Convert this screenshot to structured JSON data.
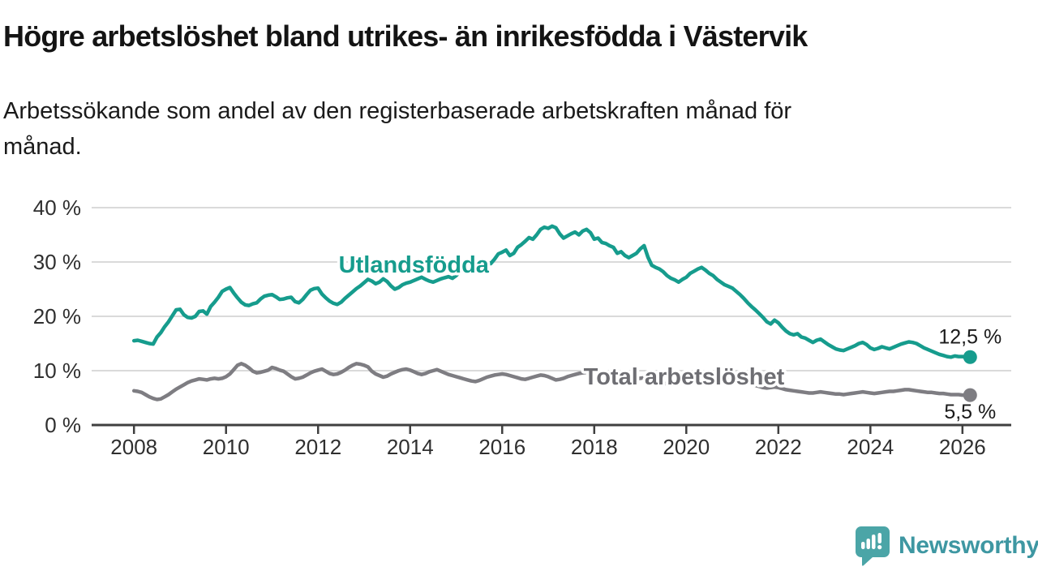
{
  "header": {
    "title": "Högre arbetslöshet bland utrikes- än inrikesfödda i Västervik",
    "subtitle": "Arbetssökande som andel av den registerbaserade arbetskraften månad för månad."
  },
  "chart_data": {
    "type": "line",
    "xlim": [
      2007.08,
      2027.06
    ],
    "ylim": [
      0,
      40
    ],
    "grid": "horizontal",
    "x_start": 2008.0,
    "x_step": 0.0833333,
    "x_ticks": [
      {
        "value": 2008,
        "label": "2008"
      },
      {
        "value": 2010,
        "label": "2010"
      },
      {
        "value": 2012,
        "label": "2012"
      },
      {
        "value": 2014,
        "label": "2014"
      },
      {
        "value": 2016,
        "label": "2016"
      },
      {
        "value": 2018,
        "label": "2018"
      },
      {
        "value": 2020,
        "label": "2020"
      },
      {
        "value": 2022,
        "label": "2022"
      },
      {
        "value": 2024,
        "label": "2024"
      },
      {
        "value": 2026,
        "label": "2026"
      }
    ],
    "y_ticks": [
      {
        "value": 0,
        "label": "0 %"
      },
      {
        "value": 10,
        "label": "10 %"
      },
      {
        "value": 20,
        "label": "20 %"
      },
      {
        "value": 30,
        "label": "30 %"
      },
      {
        "value": 40,
        "label": "40 %"
      }
    ],
    "series": [
      {
        "id": "utlandsfodda",
        "name": "Utlandsfödda",
        "color": "#169c8d",
        "label_color": "#169c8d",
        "label_x_year": 2014.08,
        "label_y_pct": 29.55,
        "end_label": "12,5 %",
        "values": [
          15.5,
          15.6,
          15.4,
          15.2,
          15.0,
          14.9,
          16.2,
          17.0,
          18.1,
          19.0,
          20.1,
          21.2,
          21.3,
          20.3,
          19.8,
          19.7,
          20.0,
          20.9,
          21.0,
          20.4,
          21.8,
          22.6,
          23.5,
          24.6,
          25.0,
          25.3,
          24.3,
          23.4,
          22.6,
          22.1,
          22.0,
          22.3,
          22.5,
          23.2,
          23.7,
          23.9,
          24.0,
          23.6,
          23.1,
          23.2,
          23.4,
          23.5,
          22.7,
          22.5,
          23.1,
          24.0,
          24.8,
          25.1,
          25.2,
          24.1,
          23.4,
          22.8,
          22.4,
          22.2,
          22.6,
          23.3,
          23.9,
          24.5,
          25.1,
          25.6,
          26.2,
          26.8,
          26.5,
          26.0,
          26.3,
          26.9,
          26.4,
          25.6,
          25.0,
          25.3,
          25.8,
          26.1,
          26.3,
          26.6,
          26.9,
          27.2,
          26.8,
          26.5,
          26.3,
          26.6,
          26.9,
          27.1,
          27.3,
          27.0,
          27.5,
          28.2,
          29.4,
          28.7,
          29.0,
          30.0,
          30.2,
          30.4,
          30.0,
          29.7,
          30.5,
          31.5,
          31.8,
          32.2,
          31.2,
          31.6,
          32.7,
          33.2,
          33.8,
          34.5,
          34.2,
          35.0,
          36.0,
          36.4,
          36.2,
          36.6,
          36.3,
          35.2,
          34.4,
          34.8,
          35.2,
          35.5,
          35.0,
          35.7,
          36.0,
          35.4,
          34.2,
          34.4,
          33.6,
          33.4,
          33.0,
          32.7,
          31.6,
          31.9,
          31.2,
          30.8,
          31.2,
          31.6,
          32.4,
          33.0,
          30.9,
          29.4,
          29.0,
          28.7,
          28.2,
          27.5,
          27.0,
          26.7,
          26.3,
          26.8,
          27.2,
          27.9,
          28.3,
          28.7,
          29.0,
          28.5,
          27.9,
          27.5,
          26.8,
          26.3,
          25.8,
          25.5,
          25.2,
          24.6,
          24.0,
          23.3,
          22.5,
          21.8,
          21.2,
          20.5,
          19.8,
          19.0,
          18.6,
          19.3,
          18.8,
          18.0,
          17.3,
          16.8,
          16.6,
          16.8,
          16.2,
          16.0,
          15.6,
          15.2,
          15.6,
          15.8,
          15.3,
          14.8,
          14.4,
          14.0,
          13.8,
          13.7,
          14.0,
          14.3,
          14.6,
          15.0,
          15.2,
          14.8,
          14.2,
          13.9,
          14.1,
          14.4,
          14.2,
          14.0,
          14.3,
          14.6,
          14.9,
          15.1,
          15.3,
          15.2,
          15.0,
          14.6,
          14.2,
          13.9,
          13.6,
          13.3,
          13.0,
          12.8,
          12.6,
          12.5,
          12.7,
          12.6,
          12.6,
          12.5,
          12.5
        ]
      },
      {
        "id": "total",
        "name": "Total arbetslöshet",
        "color": "#7e7d82",
        "label_color": "#6e6e73",
        "label_x_year": 2019.95,
        "label_y_pct": 8.96,
        "end_label": "5,5 %",
        "values": [
          6.3,
          6.2,
          6.0,
          5.6,
          5.2,
          4.9,
          4.7,
          4.8,
          5.2,
          5.6,
          6.1,
          6.6,
          7.0,
          7.4,
          7.8,
          8.1,
          8.3,
          8.5,
          8.4,
          8.3,
          8.5,
          8.6,
          8.5,
          8.6,
          8.9,
          9.4,
          10.2,
          11.0,
          11.3,
          11.0,
          10.5,
          9.9,
          9.6,
          9.7,
          9.9,
          10.1,
          10.6,
          10.4,
          10.1,
          9.9,
          9.4,
          8.9,
          8.5,
          8.6,
          8.8,
          9.2,
          9.6,
          9.9,
          10.1,
          10.3,
          9.9,
          9.5,
          9.3,
          9.4,
          9.7,
          10.1,
          10.6,
          11.0,
          11.3,
          11.2,
          11.0,
          10.7,
          9.9,
          9.4,
          9.1,
          8.8,
          9.0,
          9.4,
          9.7,
          10.0,
          10.2,
          10.3,
          10.1,
          9.8,
          9.5,
          9.3,
          9.5,
          9.8,
          10.0,
          10.2,
          9.9,
          9.6,
          9.3,
          9.1,
          8.9,
          8.7,
          8.5,
          8.3,
          8.1,
          8.0,
          8.2,
          8.5,
          8.8,
          9.0,
          9.2,
          9.3,
          9.4,
          9.3,
          9.1,
          8.9,
          8.7,
          8.5,
          8.4,
          8.6,
          8.8,
          9.0,
          9.2,
          9.1,
          8.9,
          8.6,
          8.3,
          8.4,
          8.6,
          8.9,
          9.1,
          9.3,
          9.5,
          9.6,
          9.7,
          9.6,
          9.7,
          9.6,
          9.4,
          9.2,
          9.0,
          8.8,
          8.6,
          8.5,
          8.4,
          8.3,
          8.4,
          8.5,
          8.6,
          8.7,
          8.5,
          8.2,
          8.0,
          7.8,
          7.7,
          7.6,
          7.5,
          7.6,
          7.7,
          7.8,
          8.0,
          8.3,
          8.8,
          9.3,
          9.6,
          9.7,
          9.5,
          9.3,
          9.1,
          8.9,
          8.7,
          8.6,
          8.5,
          8.3,
          8.1,
          7.9,
          7.7,
          7.5,
          7.3,
          7.1,
          6.9,
          6.8,
          6.9,
          7.0,
          6.9,
          6.7,
          6.5,
          6.4,
          6.3,
          6.2,
          6.1,
          6.0,
          5.9,
          5.9,
          6.0,
          6.1,
          6.0,
          5.9,
          5.8,
          5.7,
          5.7,
          5.6,
          5.7,
          5.8,
          5.9,
          6.0,
          6.1,
          6.0,
          5.9,
          5.8,
          5.9,
          6.0,
          6.1,
          6.2,
          6.2,
          6.3,
          6.4,
          6.5,
          6.5,
          6.4,
          6.3,
          6.2,
          6.1,
          6.0,
          6.0,
          5.9,
          5.8,
          5.8,
          5.7,
          5.6,
          5.6,
          5.6,
          5.5,
          5.5,
          5.5
        ]
      }
    ],
    "styles": {
      "grid_color": "#dadada",
      "axis_color": "#3f3f3f",
      "tick_label_color": "#2f2f2f",
      "end_label_color": "#1a1a1a"
    }
  },
  "footer": {
    "brand": "Newsworthy",
    "brand_color": "#3e97a2",
    "icon_color": "#4ba5a7"
  }
}
